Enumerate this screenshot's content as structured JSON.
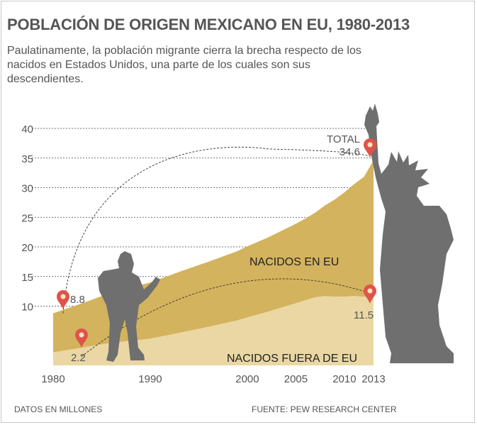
{
  "title": "POBLACIÓN DE ORIGEN MEXICANO EN EU, 1980-2013",
  "subtitle": "Paulatinamente, la población migrante cierra la brecha respecto de los nacidos en Estados Unidos, una parte de los cuales son sus descendientes.",
  "footer": {
    "units": "DATOS EN MILLONES",
    "source": "FUENTE: PEW RESEARCH CENTER"
  },
  "colors": {
    "born_us": "#d4b35e",
    "born_abroad": "#ead7a3",
    "silhouette": "#6f6f6f",
    "marker": "#e0534a",
    "text": "#555555"
  },
  "chart_data": {
    "type": "area",
    "stacked": true,
    "x": [
      1980,
      1983,
      1986,
      1990,
      1993,
      1996,
      1999,
      2000,
      2002,
      2004,
      2005,
      2006,
      2007,
      2008,
      2009,
      2010,
      2011,
      2012,
      2013
    ],
    "x_tick_labels": [
      "1980",
      "1990",
      "2000",
      "2005",
      "2010",
      "2013"
    ],
    "y_tick_labels": [
      "10",
      "15",
      "20",
      "25",
      "30",
      "35",
      "40"
    ],
    "ylim": [
      0,
      40
    ],
    "grid": true,
    "series": [
      {
        "name": "NACIDOS FUERA DE EU",
        "values": [
          2.2,
          3.0,
          3.8,
          4.5,
          5.5,
          6.5,
          7.6,
          8.1,
          9.0,
          10.0,
          10.5,
          11.0,
          11.5,
          11.7,
          11.6,
          11.6,
          11.7,
          11.6,
          11.5
        ]
      },
      {
        "name": "NACIDOS EN EU",
        "values": [
          6.6,
          7.5,
          8.5,
          9.5,
          10.3,
          11.0,
          11.7,
          12.0,
          12.5,
          13.1,
          13.4,
          13.8,
          14.3,
          15.3,
          16.4,
          17.6,
          18.9,
          20.2,
          23.1
        ]
      }
    ],
    "totals": {
      "1980": 8.8,
      "2013": 34.6
    },
    "annotations": [
      {
        "label": "8.8",
        "x": 1980,
        "y": 8.8
      },
      {
        "label": "2.2",
        "x": 1980,
        "y": 2.2
      },
      {
        "label": "11.5",
        "x": 2013,
        "y": 11.5
      },
      {
        "label": "TOTAL",
        "x": 2013,
        "y": 34.6
      },
      {
        "label": "34.6",
        "x": 2013,
        "y": 34.6
      }
    ]
  }
}
